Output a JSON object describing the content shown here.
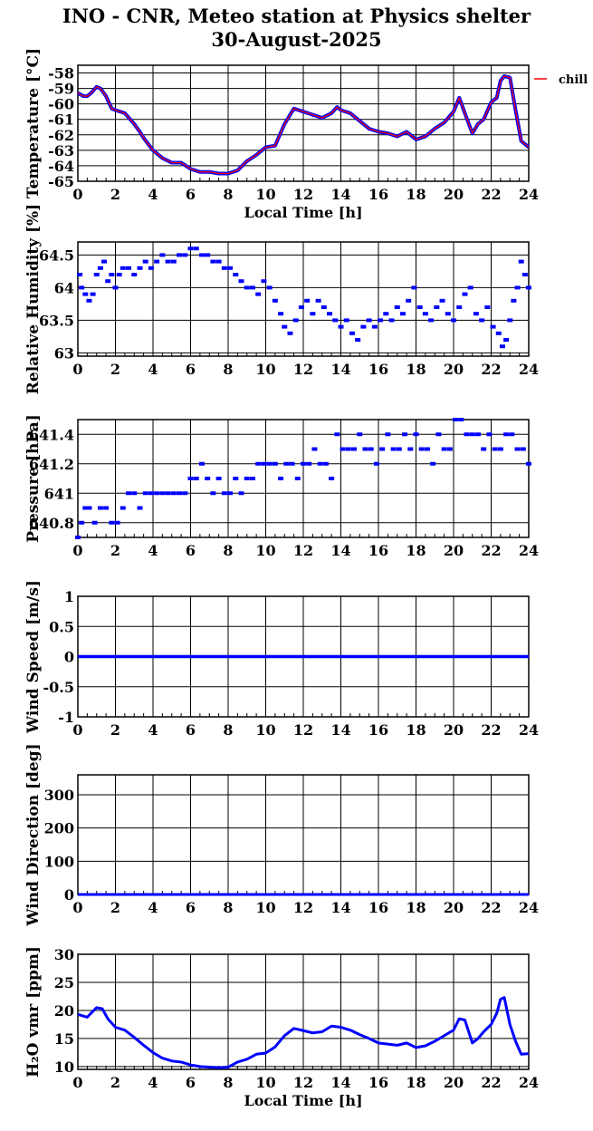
{
  "title": "INO - CNR, Meteo station at Physics shelter",
  "subtitle": "30-August-2025",
  "colors": {
    "primary": "#0000ff",
    "secondary": "#ff0000",
    "grid": "#000000"
  },
  "chart_data": [
    {
      "type": "line",
      "ylabel": "Temperature [°C]",
      "xlabel": "Local Time [h]",
      "xlim": [
        0,
        24
      ],
      "ylim": [
        -65,
        -57.5
      ],
      "xticks": [
        0,
        2,
        4,
        6,
        8,
        10,
        12,
        14,
        16,
        18,
        20,
        22,
        24
      ],
      "yticks": [
        -65,
        -64,
        -63,
        -62,
        -61,
        -60,
        -59,
        -58
      ],
      "legend": "top-right",
      "series": [
        {
          "name": "chill",
          "color": "#ff0000",
          "x": [
            0,
            0.3,
            0.5,
            0.7,
            1,
            1.2,
            1.5,
            1.8,
            2,
            2.5,
            3,
            3.3,
            3.5,
            4,
            4.5,
            5,
            5.5,
            6,
            6.5,
            7,
            7.5,
            8,
            8.5,
            9,
            9.5,
            10,
            10.5,
            11,
            11.5,
            12,
            12.5,
            13,
            13.5,
            13.8,
            14,
            14.5,
            15,
            15.5,
            16,
            16.5,
            17,
            17.5,
            18,
            18.5,
            19,
            19.5,
            20,
            20.3,
            20.6,
            21,
            21.3,
            21.6,
            22,
            22.3,
            22.5,
            22.7,
            23,
            23.3,
            23.6,
            24
          ],
          "y": [
            -59.3,
            -59.5,
            -59.5,
            -59.3,
            -58.9,
            -59,
            -59.5,
            -60.3,
            -60.4,
            -60.6,
            -61.3,
            -61.8,
            -62.2,
            -63,
            -63.5,
            -63.8,
            -63.8,
            -64.2,
            -64.4,
            -64.4,
            -64.5,
            -64.5,
            -64.3,
            -63.7,
            -63.3,
            -62.8,
            -62.7,
            -61.3,
            -60.3,
            -60.5,
            -60.7,
            -60.9,
            -60.6,
            -60.2,
            -60.4,
            -60.6,
            -61.1,
            -61.6,
            -61.8,
            -61.9,
            -62.1,
            -61.8,
            -62.3,
            -62.1,
            -61.6,
            -61.2,
            -60.5,
            -59.6,
            -60.6,
            -61.9,
            -61.3,
            -61,
            -59.9,
            -59.6,
            -58.5,
            -58.2,
            -58.3,
            -60.4,
            -62.4,
            -62.8
          ]
        }
      ]
    },
    {
      "type": "scatter",
      "ylabel": "Relative Humidity [%]",
      "xlim": [
        0,
        24
      ],
      "ylim": [
        62.95,
        64.7
      ],
      "xticks": [
        0,
        2,
        4,
        6,
        8,
        10,
        12,
        14,
        16,
        18,
        20,
        22,
        24
      ],
      "yticks": [
        63,
        63.5,
        64,
        64.5
      ],
      "yticklabels": [
        "63",
        "63.5",
        "64",
        "64.5"
      ],
      "series": [
        {
          "color": "#0000ff",
          "x": [
            0.1,
            0.2,
            0.4,
            0.6,
            0.8,
            1.0,
            1.2,
            1.4,
            1.6,
            1.8,
            2.0,
            2.2,
            2.4,
            2.7,
            3.0,
            3.3,
            3.6,
            3.9,
            4.2,
            4.5,
            4.8,
            5.1,
            5.4,
            5.7,
            6.0,
            6.3,
            6.6,
            6.9,
            7.2,
            7.5,
            7.8,
            8.1,
            8.4,
            8.7,
            9.0,
            9.3,
            9.6,
            9.9,
            10.2,
            10.5,
            10.8,
            11.0,
            11.3,
            11.6,
            11.9,
            12.2,
            12.5,
            12.8,
            13.1,
            13.4,
            13.7,
            14.0,
            14.3,
            14.6,
            14.9,
            15.2,
            15.5,
            15.8,
            16.1,
            16.4,
            16.7,
            17.0,
            17.3,
            17.6,
            17.9,
            18.2,
            18.5,
            18.8,
            19.1,
            19.4,
            19.7,
            20.0,
            20.3,
            20.6,
            20.9,
            21.2,
            21.5,
            21.8,
            22.1,
            22.4,
            22.6,
            22.8,
            23.0,
            23.2,
            23.4,
            23.6,
            23.8,
            24.0
          ],
          "y": [
            64.2,
            64.0,
            63.9,
            63.8,
            63.9,
            64.2,
            64.3,
            64.4,
            64.1,
            64.2,
            64.0,
            64.2,
            64.3,
            64.3,
            64.2,
            64.3,
            64.4,
            64.3,
            64.4,
            64.5,
            64.4,
            64.4,
            64.5,
            64.5,
            64.6,
            64.6,
            64.5,
            64.5,
            64.4,
            64.4,
            64.3,
            64.3,
            64.2,
            64.1,
            64.0,
            64.0,
            63.9,
            64.1,
            64.0,
            63.8,
            63.6,
            63.4,
            63.3,
            63.5,
            63.7,
            63.8,
            63.6,
            63.8,
            63.7,
            63.6,
            63.5,
            63.4,
            63.5,
            63.3,
            63.2,
            63.4,
            63.5,
            63.4,
            63.5,
            63.6,
            63.5,
            63.7,
            63.6,
            63.8,
            64.0,
            63.7,
            63.6,
            63.5,
            63.7,
            63.8,
            63.6,
            63.5,
            63.7,
            63.9,
            64.0,
            63.6,
            63.5,
            63.7,
            63.4,
            63.3,
            63.1,
            63.2,
            63.5,
            63.8,
            64.0,
            64.4,
            64.2,
            64.0
          ]
        }
      ]
    },
    {
      "type": "scatter",
      "ylabel": "Pressure [hPa]",
      "xlim": [
        0,
        24
      ],
      "ylim": [
        640.7,
        641.5
      ],
      "xticks": [
        0,
        2,
        4,
        6,
        8,
        10,
        12,
        14,
        16,
        18,
        20,
        22,
        24
      ],
      "yticks": [
        640.8,
        641,
        641.2,
        641.4
      ],
      "yticklabels": [
        "640.8",
        "641",
        "641.2",
        "641.4"
      ],
      "series": [
        {
          "color": "#0000ff",
          "x": [
            0.0,
            0.2,
            0.4,
            0.6,
            0.9,
            1.2,
            1.5,
            1.8,
            2.1,
            2.4,
            2.7,
            3.0,
            3.3,
            3.6,
            3.9,
            4.2,
            4.5,
            4.8,
            5.1,
            5.4,
            5.7,
            6.0,
            6.3,
            6.6,
            6.9,
            7.2,
            7.5,
            7.8,
            8.1,
            8.4,
            8.7,
            9.0,
            9.3,
            9.6,
            9.9,
            10.2,
            10.5,
            10.8,
            11.1,
            11.4,
            11.7,
            12.0,
            12.3,
            12.6,
            12.9,
            13.2,
            13.5,
            13.8,
            14.1,
            14.4,
            14.7,
            15.0,
            15.3,
            15.6,
            15.9,
            16.2,
            16.5,
            16.8,
            17.1,
            17.4,
            17.7,
            18.0,
            18.3,
            18.6,
            18.9,
            19.2,
            19.5,
            19.8,
            20.1,
            20.4,
            20.7,
            21.0,
            21.3,
            21.6,
            21.9,
            22.2,
            22.5,
            22.8,
            23.1,
            23.4,
            23.7,
            24.0
          ],
          "y": [
            640.7,
            640.8,
            640.9,
            640.9,
            640.8,
            640.9,
            640.9,
            640.8,
            640.8,
            640.9,
            641.0,
            641.0,
            640.9,
            641.0,
            641.0,
            641.0,
            641.0,
            641.0,
            641.0,
            641.0,
            641.0,
            641.1,
            641.1,
            641.2,
            641.1,
            641.0,
            641.1,
            641.0,
            641.0,
            641.1,
            641.0,
            641.1,
            641.1,
            641.2,
            641.2,
            641.2,
            641.2,
            641.1,
            641.2,
            641.2,
            641.1,
            641.2,
            641.2,
            641.3,
            641.2,
            641.2,
            641.1,
            641.4,
            641.3,
            641.3,
            641.3,
            641.4,
            641.3,
            641.3,
            641.2,
            641.3,
            641.4,
            641.3,
            641.3,
            641.4,
            641.3,
            641.4,
            641.3,
            641.3,
            641.2,
            641.4,
            641.3,
            641.3,
            641.5,
            641.5,
            641.4,
            641.4,
            641.4,
            641.3,
            641.4,
            641.3,
            641.3,
            641.4,
            641.4,
            641.3,
            641.3,
            641.2
          ]
        }
      ]
    },
    {
      "type": "line",
      "ylabel": "Wind Speed [m/s]",
      "xlim": [
        0,
        24
      ],
      "ylim": [
        -1,
        1
      ],
      "xticks": [
        0,
        2,
        4,
        6,
        8,
        10,
        12,
        14,
        16,
        18,
        20,
        22,
        24
      ],
      "yticks": [
        -1,
        -0.5,
        0,
        0.5,
        1
      ],
      "yticklabels": [
        "-1",
        "-0.5",
        "0",
        "0.5",
        "1"
      ],
      "series": [
        {
          "color": "#0000ff",
          "x": [
            0,
            24
          ],
          "y": [
            0,
            0
          ]
        }
      ]
    },
    {
      "type": "line",
      "ylabel": "Wind Direction [deg]",
      "xlim": [
        0,
        24
      ],
      "ylim": [
        0,
        360
      ],
      "xticks": [
        0,
        2,
        4,
        6,
        8,
        10,
        12,
        14,
        16,
        18,
        20,
        22,
        24
      ],
      "yticks": [
        0,
        100,
        200,
        300
      ],
      "series": [
        {
          "color": "#0000ff",
          "x": [
            0,
            24
          ],
          "y": [
            0,
            0
          ]
        }
      ]
    },
    {
      "type": "line",
      "ylabel": "H₂O vmr [ppm]",
      "xlabel": "Local Time [h]",
      "xlim": [
        0,
        24
      ],
      "ylim": [
        9.5,
        30
      ],
      "xticks": [
        0,
        2,
        4,
        6,
        8,
        10,
        12,
        14,
        16,
        18,
        20,
        22,
        24
      ],
      "yticks": [
        10,
        15,
        20,
        25,
        30
      ],
      "series": [
        {
          "color": "#0000ff",
          "x": [
            0,
            0.3,
            0.5,
            0.7,
            1,
            1.3,
            1.6,
            2,
            2.5,
            3,
            3.5,
            4,
            4.5,
            5,
            5.5,
            6,
            6.5,
            7,
            7.5,
            8,
            8.5,
            9,
            9.5,
            10,
            10.5,
            11,
            11.5,
            12,
            12.5,
            13,
            13.5,
            14,
            14.5,
            15,
            15.5,
            16,
            16.5,
            17,
            17.5,
            18,
            18.5,
            19,
            19.5,
            20,
            20.3,
            20.6,
            21,
            21.3,
            21.6,
            22,
            22.3,
            22.5,
            22.7,
            23,
            23.3,
            23.6,
            24
          ],
          "y": [
            19.3,
            19,
            18.8,
            19.5,
            20.5,
            20.3,
            18.5,
            17,
            16.5,
            15.2,
            13.8,
            12.5,
            11.5,
            11,
            10.8,
            10.3,
            10,
            9.9,
            9.8,
            9.9,
            10.8,
            11.3,
            12.2,
            12.4,
            13.5,
            15.5,
            16.8,
            16.4,
            16,
            16.2,
            17.2,
            17,
            16.5,
            15.7,
            15,
            14.2,
            14,
            13.8,
            14.2,
            13.4,
            13.7,
            14.5,
            15.5,
            16.5,
            18.5,
            18.3,
            14.2,
            15,
            16.2,
            17.5,
            19.5,
            22,
            22.3,
            17.5,
            14.5,
            12.2,
            12.3
          ]
        }
      ]
    }
  ]
}
